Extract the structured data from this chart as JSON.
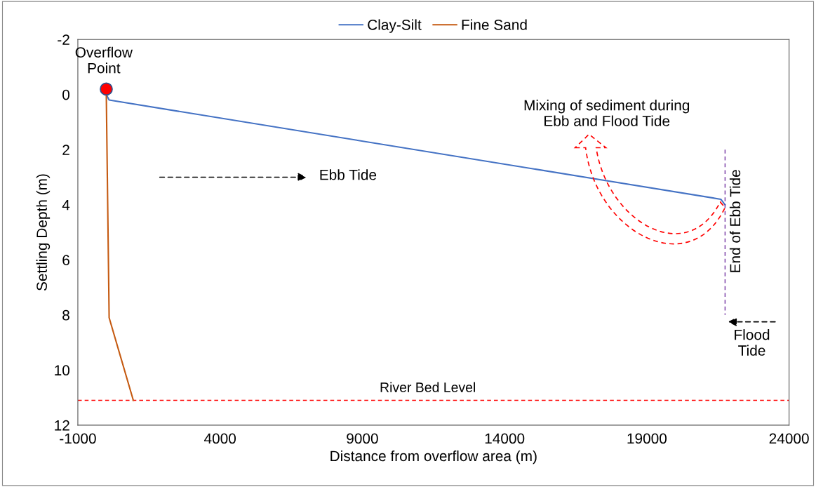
{
  "chart_data": {
    "type": "line",
    "xlabel": "Distance from overflow area (m)",
    "ylabel": "Settling Depth (m)",
    "xlim": [
      -1000,
      24000
    ],
    "xticks": [
      -1000,
      4000,
      9000,
      14000,
      19000,
      24000
    ],
    "ylim": [
      12,
      -2
    ],
    "yticks": [
      -2,
      0,
      2,
      4,
      6,
      8,
      10,
      12
    ],
    "series": [
      {
        "name": "Clay-Silt",
        "color": "#4472c4",
        "x": [
          0,
          100,
          21600,
          21750
        ],
        "values": [
          0,
          0.2,
          3.8,
          4.0
        ]
      },
      {
        "name": "Fine Sand",
        "color": "#c55a11",
        "x": [
          0,
          100,
          950
        ],
        "values": [
          0,
          8.1,
          11.1
        ]
      },
      {
        "type": "line",
        "color": "#7030a0",
        "line_style": "dashed",
        "x": [
          21750,
          21750
        ],
        "values": [
          2,
          8
        ]
      },
      {
        "type": "scatter",
        "color": "#ff0000",
        "marker": "circle",
        "x": [
          0
        ],
        "values": [
          -0.2
        ]
      }
    ],
    "ref_lines": [
      {
        "axis": "y",
        "value": 11.1,
        "label": "River Bed Level",
        "color": "#ff0000",
        "line_style": "dashed"
      }
    ],
    "annotations": [
      {
        "text": "Overflow Point",
        "x": 0,
        "y": -0.2
      },
      {
        "text": "End of Ebb Tide",
        "x": 21750,
        "y": 5
      },
      "Mixing of sediment during Ebb and Flood Tide",
      "Ebb Tide",
      "Flood Tide"
    ],
    "grid": false,
    "legend": "top"
  }
}
